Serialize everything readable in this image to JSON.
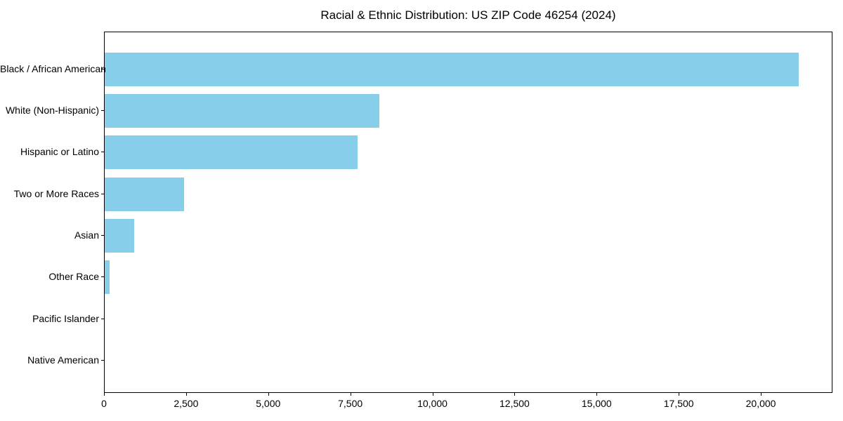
{
  "chart_data": {
    "type": "bar",
    "orientation": "horizontal",
    "title": "Racial & Ethnic Distribution: US ZIP Code 46254 (2024)",
    "categories": [
      "Black / African American",
      "White (Non-Hispanic)",
      "Hispanic or Latino",
      "Two or More Races",
      "Asian",
      "Other Race",
      "Pacific Islander",
      "Native American"
    ],
    "values": [
      21130,
      8370,
      7690,
      2410,
      900,
      160,
      0,
      0
    ],
    "xlabel": "",
    "ylabel": "",
    "xlim": [
      0,
      22180
    ],
    "xticks": [
      0,
      2500,
      5000,
      7500,
      10000,
      12500,
      15000,
      17500,
      20000
    ],
    "xtick_labels": [
      "0",
      "2,500",
      "5,000",
      "7,500",
      "10,000",
      "12,500",
      "15,000",
      "17,500",
      "20,000"
    ],
    "bar_color": "#87CEEB",
    "background_color": "#ffffff",
    "text_color": "#000000",
    "axis_color": "#000000",
    "grid": false,
    "legend": null
  }
}
